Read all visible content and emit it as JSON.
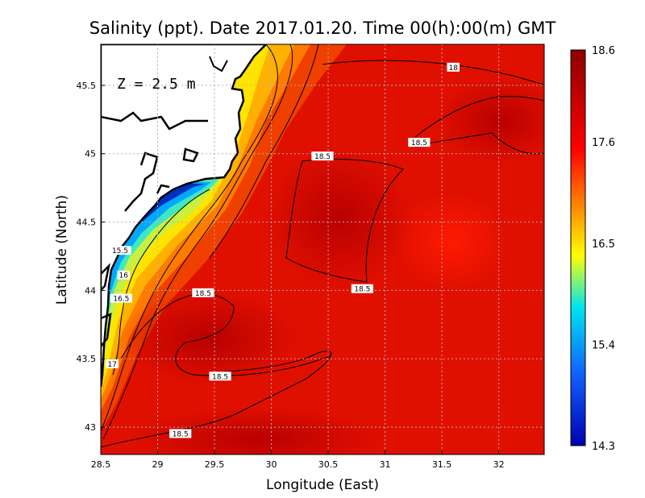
{
  "chart_data": {
    "type": "heatmap",
    "title": "Salinity (ppt). Date 2017.01.20. Time 00(h):00(m) GMT",
    "xlabel": "Longitude (East)",
    "ylabel": "Latitude (North)",
    "depth_label": "Z = 2.5 m",
    "xlim": [
      28.5,
      32.4
    ],
    "ylim": [
      42.8,
      45.8
    ],
    "x_ticks": [
      "28.5",
      "29",
      "29.5",
      "30",
      "30.5",
      "31",
      "31.5",
      "32"
    ],
    "x_tick_values": [
      28.5,
      29,
      29.5,
      30,
      30.5,
      31,
      31.5,
      32
    ],
    "y_ticks": [
      "43",
      "43.5",
      "44",
      "44.5",
      "45",
      "45.5"
    ],
    "y_tick_values": [
      43,
      43.5,
      44,
      44.5,
      45,
      45.5
    ],
    "grid": true,
    "colorbar": {
      "min": 14.3,
      "max": 18.6,
      "ticks": [
        "18.6",
        "17.6",
        "16.5",
        "15.4",
        "14.3"
      ],
      "tick_values": [
        18.6,
        17.6,
        16.5,
        15.4,
        14.3
      ],
      "colors": [
        "#8b0000",
        "#ff0000",
        "#ffa500",
        "#ffff00",
        "#00e0e0",
        "#0080ff",
        "#0000c0"
      ]
    },
    "contour_labels": [
      {
        "text": "18",
        "lon": 31.6,
        "lat": 45.63
      },
      {
        "text": "18.5",
        "lon": 31.3,
        "lat": 45.08
      },
      {
        "text": "18.5",
        "lon": 30.45,
        "lat": 44.98
      },
      {
        "text": "18.5",
        "lon": 30.8,
        "lat": 44.01
      },
      {
        "text": "18.5",
        "lon": 29.4,
        "lat": 43.98
      },
      {
        "text": "18.5",
        "lon": 29.55,
        "lat": 43.37
      },
      {
        "text": "18.5",
        "lon": 29.2,
        "lat": 42.95
      },
      {
        "text": "15.5",
        "lon": 28.67,
        "lat": 44.29
      },
      {
        "text": "16",
        "lon": 28.7,
        "lat": 44.11
      },
      {
        "text": "16.5",
        "lon": 28.68,
        "lat": 43.94
      },
      {
        "text": "17",
        "lon": 28.6,
        "lat": 43.46
      }
    ]
  }
}
